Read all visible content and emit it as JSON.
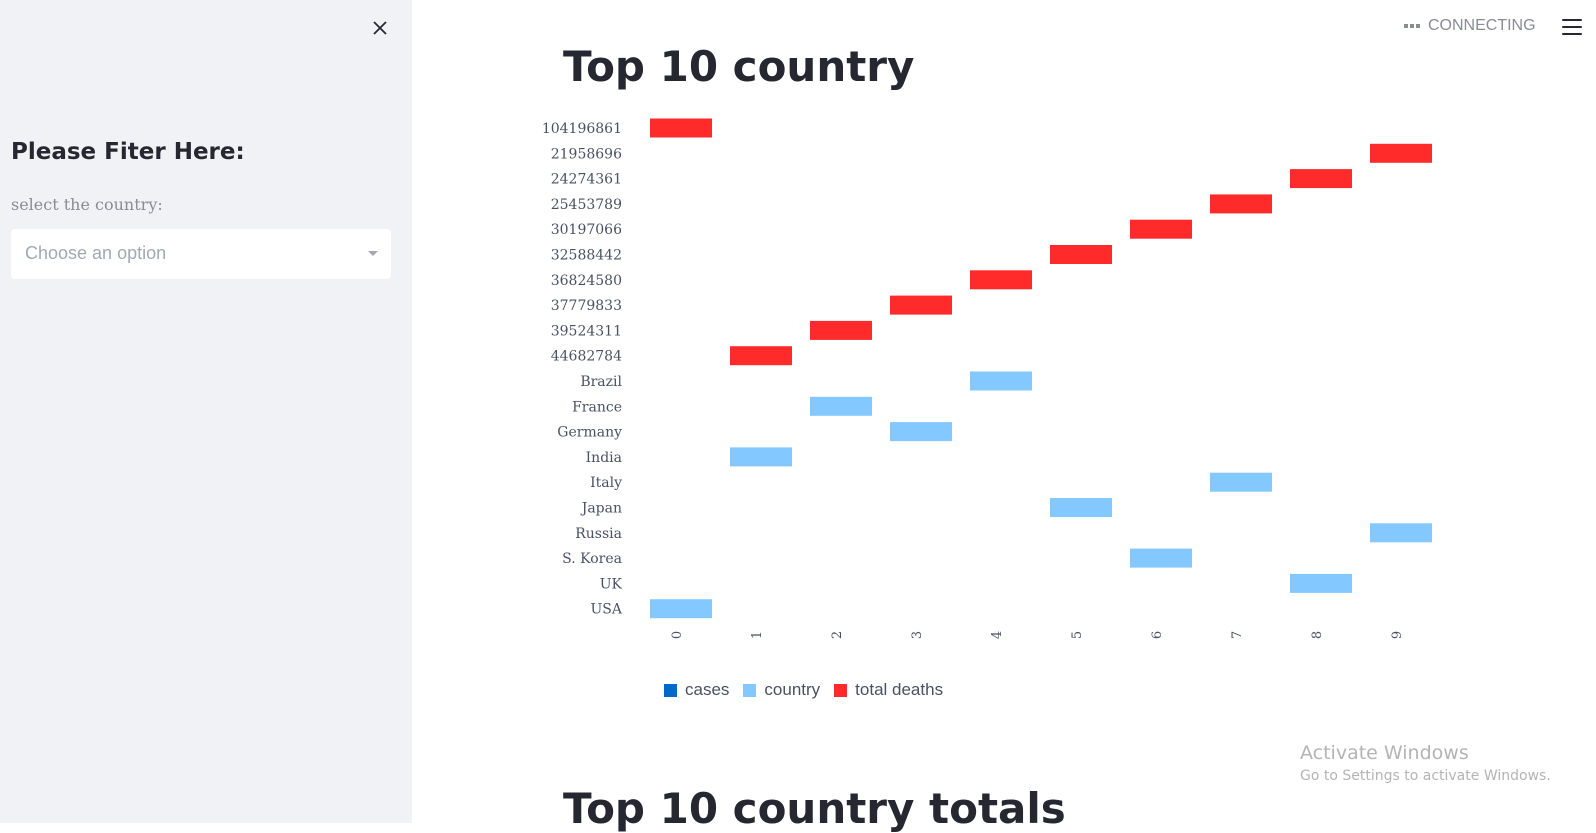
{
  "sidebar": {
    "title": "Please Fiter Here:",
    "select_label": "select the country:",
    "select_placeholder": "Choose an option"
  },
  "header": {
    "status": "CONNECTING"
  },
  "main": {
    "title": "Top 10 country",
    "second_title": "Top 10 country totals"
  },
  "watermark": {
    "title": "Activate Windows",
    "subtitle": "Go to Settings to activate Windows."
  },
  "colors": {
    "cases": "#0068c9",
    "country": "#83c9ff",
    "total_deaths": "#ff2b2b"
  },
  "chart_data": {
    "type": "heatmap",
    "x": [
      "0",
      "1",
      "2",
      "3",
      "4",
      "5",
      "6",
      "7",
      "8",
      "9"
    ],
    "y_categories": [
      "104196861",
      "21958696",
      "24274361",
      "25453789",
      "30197066",
      "32588442",
      "36824580",
      "37779833",
      "39524311",
      "44682784",
      "Brazil",
      "France",
      "Germany",
      "India",
      "Italy",
      "Japan",
      "Russia",
      "S. Korea",
      "UK",
      "USA"
    ],
    "series": [
      {
        "name": "cases",
        "color": "#0068c9",
        "points": []
      },
      {
        "name": "country",
        "color": "#83c9ff",
        "points": [
          {
            "x": "0",
            "y": "USA"
          },
          {
            "x": "1",
            "y": "India"
          },
          {
            "x": "2",
            "y": "France"
          },
          {
            "x": "3",
            "y": "Germany"
          },
          {
            "x": "4",
            "y": "Brazil"
          },
          {
            "x": "5",
            "y": "Japan"
          },
          {
            "x": "6",
            "y": "S. Korea"
          },
          {
            "x": "7",
            "y": "Italy"
          },
          {
            "x": "8",
            "y": "UK"
          },
          {
            "x": "9",
            "y": "Russia"
          }
        ]
      },
      {
        "name": "total deaths",
        "color": "#ff2b2b",
        "points": [
          {
            "x": "0",
            "y": "104196861"
          },
          {
            "x": "1",
            "y": "44682784"
          },
          {
            "x": "2",
            "y": "39524311"
          },
          {
            "x": "3",
            "y": "37779833"
          },
          {
            "x": "4",
            "y": "36824580"
          },
          {
            "x": "5",
            "y": "32588442"
          },
          {
            "x": "6",
            "y": "30197066"
          },
          {
            "x": "7",
            "y": "25453789"
          },
          {
            "x": "8",
            "y": "24274361"
          },
          {
            "x": "9",
            "y": "21958696"
          }
        ]
      }
    ],
    "legend": [
      "cases",
      "country",
      "total deaths"
    ],
    "legend_position": "bottom-left"
  }
}
